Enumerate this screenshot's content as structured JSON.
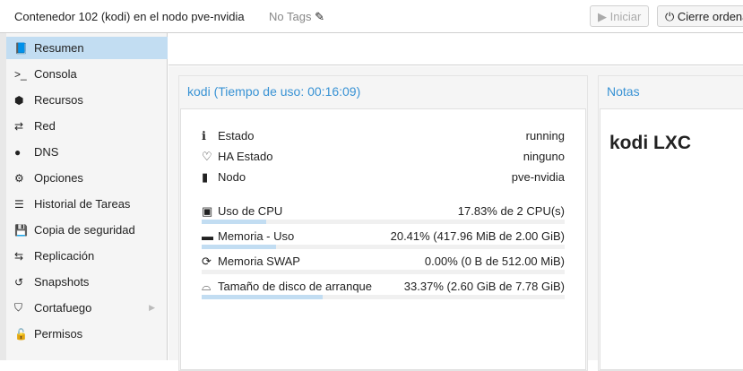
{
  "header": {
    "title": "Contenedor 102 (kodi) en el nodo pve-nvidia",
    "tags": "No Tags",
    "start_label": "Iniciar",
    "shutdown_label": "Cierre ordena"
  },
  "sidebar": {
    "items": [
      {
        "label": "Resumen",
        "icon": "book-icon",
        "glyph": "📘",
        "selected": true
      },
      {
        "label": "Consola",
        "icon": "terminal-icon",
        "glyph": ">_"
      },
      {
        "label": "Recursos",
        "icon": "cube-icon",
        "glyph": "⬢"
      },
      {
        "label": "Red",
        "icon": "exchange-icon",
        "glyph": "⇄"
      },
      {
        "label": "DNS",
        "icon": "globe-icon",
        "glyph": "●"
      },
      {
        "label": "Opciones",
        "icon": "gear-icon",
        "glyph": "⚙"
      },
      {
        "label": "Historial de Tareas",
        "icon": "list-icon",
        "glyph": "☰"
      },
      {
        "label": "Copia de seguridad",
        "icon": "floppy-icon",
        "glyph": "💾"
      },
      {
        "label": "Replicación",
        "icon": "retweet-icon",
        "glyph": "⇆"
      },
      {
        "label": "Snapshots",
        "icon": "history-icon",
        "glyph": "↺"
      },
      {
        "label": "Cortafuego",
        "icon": "shield-icon",
        "glyph": "⛉",
        "has_submenu": true
      },
      {
        "label": "Permisos",
        "icon": "unlock-icon",
        "glyph": "🔓"
      }
    ]
  },
  "summary": {
    "title": "kodi (Tiempo de uso: 00:16:09)",
    "status": [
      {
        "label": "Estado",
        "value": "running",
        "icon": "info-icon",
        "glyph": "ℹ"
      },
      {
        "label": "HA Estado",
        "value": "ninguno",
        "icon": "heartbeat-icon",
        "glyph": "♡"
      },
      {
        "label": "Nodo",
        "value": "pve-nvidia",
        "icon": "server-icon",
        "glyph": "▮"
      }
    ],
    "usage": [
      {
        "label": "Uso de CPU",
        "value": "17.83% de 2 CPU(s)",
        "percent": 17.83,
        "icon": "cpu-icon",
        "glyph": "▣"
      },
      {
        "label": "Memoria - Uso",
        "value": "20.41% (417.96 MiB de 2.00 GiB)",
        "percent": 20.41,
        "icon": "memory-icon",
        "glyph": "▬"
      },
      {
        "label": "Memoria SWAP",
        "value": "0.00% (0 B de 512.00 MiB)",
        "percent": 0,
        "icon": "refresh-icon",
        "glyph": "⟳"
      },
      {
        "label": "Tamaño de disco de arranque",
        "value": "33.37% (2.60 GiB de 7.78 GiB)",
        "percent": 33.37,
        "icon": "hdd-icon",
        "glyph": "⌓"
      }
    ]
  },
  "notes": {
    "title": "Notas",
    "content": "kodi LXC"
  },
  "colors": {
    "accent": "#3892d4",
    "selected": "#c2ddf2"
  }
}
